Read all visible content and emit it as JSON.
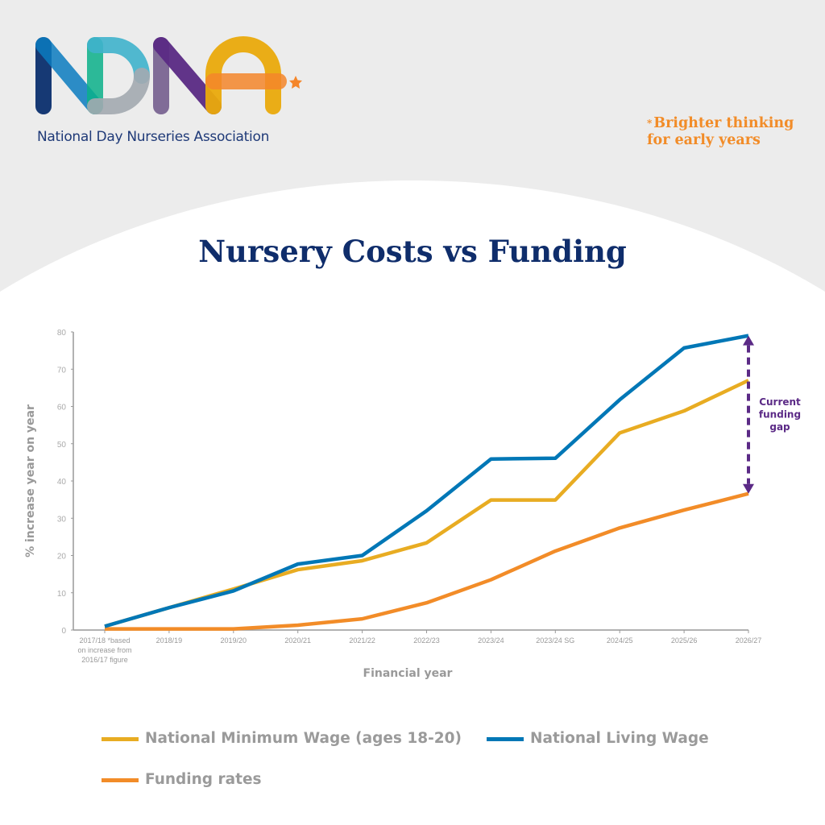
{
  "header": {
    "logo_text": "NDNA",
    "organisation": "National Day Nurseries Association",
    "tagline_star": "*",
    "tagline_line1": "Brighter thinking",
    "tagline_line2": "for early years"
  },
  "colors": {
    "background": "#ececec",
    "title": "#0f2d6b",
    "nmw": "#e8ac22",
    "nlw": "#0077b6",
    "funding": "#f28c28",
    "annotation": "#5b2a86",
    "axis": "#999999"
  },
  "chart_data": {
    "type": "line",
    "title": "Nursery Costs vs Funding",
    "xlabel": "Financial year",
    "ylabel": "% increase year on year",
    "ylim": [
      0,
      80
    ],
    "yticks": [
      0,
      10,
      20,
      30,
      40,
      50,
      60,
      70,
      80
    ],
    "grid": false,
    "legend_position": "bottom",
    "categories": [
      "2017/18 *based on increase from 2016/17 figure",
      "2018/19",
      "2019/20",
      "2020/21",
      "2021/22",
      "2022/23",
      "2023/24",
      "2023/24 SG",
      "2024/25",
      "2025/26",
      "2026/27"
    ],
    "series": [
      {
        "name": "National Minimum Wage (ages 18-20)",
        "color": "#e8ac22",
        "values": [
          1,
          6,
          11,
          16.2,
          18.6,
          23.4,
          34.9,
          34.9,
          52.9,
          58.8,
          67
        ]
      },
      {
        "name": "National Living Wage",
        "color": "#0077b6",
        "values": [
          1,
          6,
          10.5,
          17.7,
          20,
          32,
          45.9,
          46.1,
          61.8,
          75.7,
          79
        ]
      },
      {
        "name": "Funding rates",
        "color": "#f28c28",
        "values": [
          0.3,
          0.3,
          0.3,
          1.3,
          3,
          7.3,
          13.5,
          21.2,
          27.4,
          32.2,
          36.6
        ]
      }
    ],
    "annotation": {
      "text_lines": [
        "Current",
        "funding",
        "gap"
      ],
      "category": "2026/27",
      "from_series": "Funding rates",
      "to_series": "National Living Wage"
    }
  }
}
